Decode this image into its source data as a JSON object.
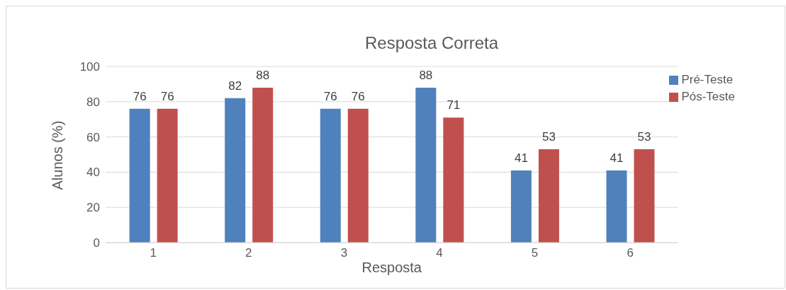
{
  "chart_data": {
    "type": "bar",
    "title": "Resposta Correta",
    "xlabel": "Resposta",
    "ylabel": "Alunos (%)",
    "categories": [
      "1",
      "2",
      "3",
      "4",
      "5",
      "6"
    ],
    "series": [
      {
        "name": "Pré-Teste",
        "color": "#4f81bd",
        "values": [
          76,
          82,
          76,
          88,
          41,
          41
        ]
      },
      {
        "name": "Pós-Teste",
        "color": "#c0504d",
        "values": [
          76,
          88,
          76,
          71,
          53,
          53
        ]
      }
    ],
    "ylim": [
      0,
      100
    ],
    "yticks": [
      0,
      20,
      40,
      60,
      80,
      100
    ],
    "grid": "y",
    "legend": "top right",
    "data_labels": true
  }
}
